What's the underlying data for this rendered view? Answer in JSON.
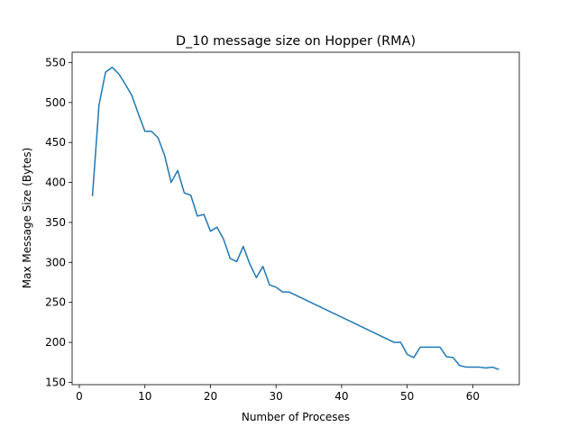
{
  "chart_data": {
    "type": "line",
    "title": "D_10 message size on Hopper (RMA)",
    "xlabel": "Number of Proceses",
    "ylabel": "Max Message Size (Bytes)",
    "x": [
      2,
      3,
      4,
      5,
      6,
      7,
      8,
      9,
      10,
      11,
      12,
      13,
      14,
      15,
      16,
      17,
      18,
      19,
      20,
      21,
      22,
      23,
      24,
      25,
      26,
      27,
      28,
      29,
      30,
      31,
      32,
      48,
      49,
      50,
      51,
      52,
      53,
      54,
      55,
      56,
      57,
      58,
      59,
      60,
      61,
      62,
      63,
      64
    ],
    "series": [
      {
        "name": "D_10",
        "color": "#1f77b4",
        "values": [
          383,
          497,
          538,
          544,
          536,
          523,
          509,
          486,
          464,
          464,
          456,
          434,
          400,
          415,
          387,
          384,
          358,
          360,
          339,
          344,
          329,
          305,
          301,
          320,
          298,
          281,
          295,
          272,
          269,
          263,
          263,
          200,
          200,
          185,
          181,
          194,
          194,
          194,
          194,
          182,
          181,
          171,
          169,
          169,
          169,
          168,
          169,
          166
        ]
      }
    ],
    "xlim": [
      -1.1,
      67.1
    ],
    "ylim": [
      147.1,
      562.9
    ],
    "xticks": [
      0,
      10,
      20,
      30,
      40,
      50,
      60
    ],
    "yticks": [
      150,
      200,
      250,
      300,
      350,
      400,
      450,
      500,
      550
    ]
  }
}
